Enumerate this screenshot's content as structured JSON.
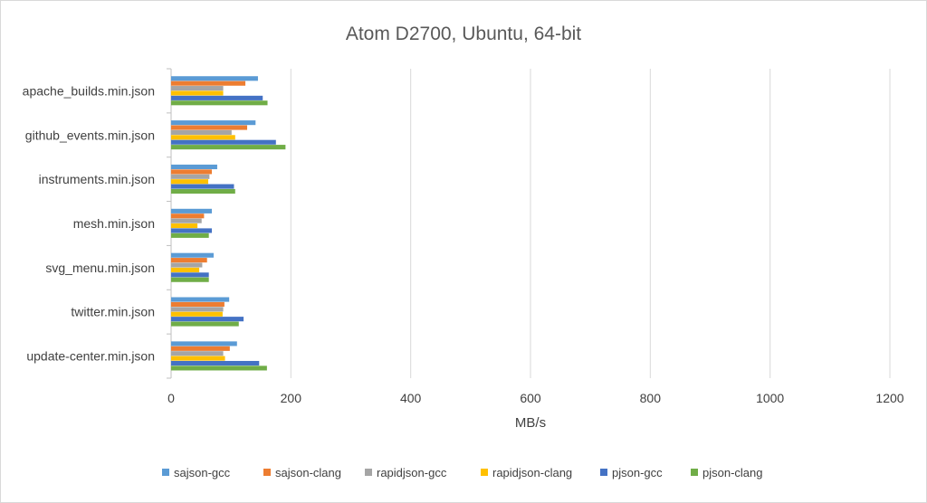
{
  "chart_data": {
    "type": "bar",
    "orientation": "horizontal",
    "title": "Atom D2700, Ubuntu, 64-bit",
    "xlabel": "MB/s",
    "ylabel": "",
    "xlim": [
      0,
      1200
    ],
    "xticks": [
      0,
      200,
      400,
      600,
      800,
      1000,
      1200
    ],
    "grid": true,
    "legend_position": "bottom",
    "categories": [
      "apache_builds.min.json",
      "github_events.min.json",
      "instruments.min.json",
      "mesh.min.json",
      "svg_menu.min.json",
      "twitter.min.json",
      "update-center.min.json"
    ],
    "series": [
      {
        "name": "sajson-gcc",
        "color": "#5b9bd5",
        "values": [
          145,
          141,
          77,
          68,
          71,
          97,
          110
        ]
      },
      {
        "name": "sajson-clang",
        "color": "#ed7d31",
        "values": [
          124,
          127,
          68,
          55,
          60,
          89,
          98
        ]
      },
      {
        "name": "rapidjson-gcc",
        "color": "#a5a5a5",
        "values": [
          87,
          101,
          64,
          51,
          52,
          87,
          87
        ]
      },
      {
        "name": "rapidjson-clang",
        "color": "#ffc000",
        "values": [
          87,
          107,
          62,
          44,
          47,
          86,
          90
        ]
      },
      {
        "name": "pjson-gcc",
        "color": "#4472c4",
        "values": [
          153,
          175,
          105,
          68,
          63,
          121,
          147
        ]
      },
      {
        "name": "pjson-clang",
        "color": "#70ad47",
        "values": [
          161,
          191,
          107,
          63,
          63,
          113,
          160
        ]
      }
    ]
  }
}
